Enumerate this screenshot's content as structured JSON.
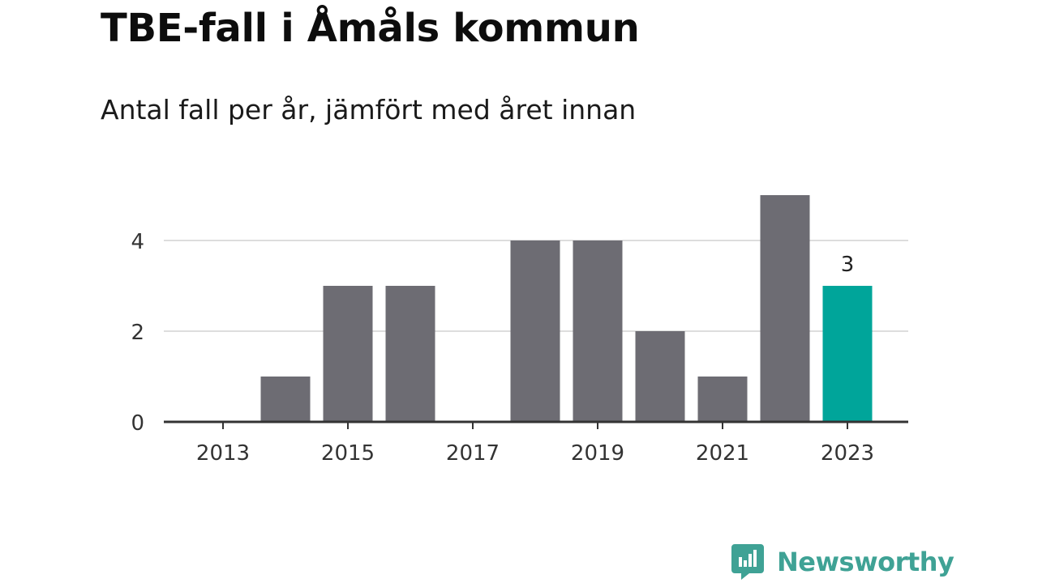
{
  "title": "TBE-fall i Åmåls kommun",
  "subtitle": "Antal fall per år, jämfört med året innan",
  "brand": {
    "name": "Newsworthy"
  },
  "colors": {
    "bar": "#6d6c73",
    "highlight": "#00a59a",
    "grid": "#dddddd",
    "axis": "#333333",
    "brand": "#3fa295"
  },
  "chart_data": {
    "type": "bar",
    "categories": [
      "2013",
      "2014",
      "2015",
      "2016",
      "2017",
      "2018",
      "2019",
      "2020",
      "2021",
      "2022",
      "2023"
    ],
    "values": [
      0,
      1,
      3,
      3,
      0,
      4,
      4,
      2,
      1,
      5,
      3
    ],
    "highlight_category": "2023",
    "data_labels": {
      "2023": "3"
    },
    "x_tick_labels": [
      "2013",
      "2015",
      "2017",
      "2019",
      "2021",
      "2023"
    ],
    "y_ticks": [
      0,
      2,
      4
    ],
    "ylim": [
      0,
      5
    ],
    "grid": true,
    "legend": "none",
    "title": "TBE-fall i Åmåls kommun",
    "subtitle": "Antal fall per år, jämfört med året innan"
  }
}
